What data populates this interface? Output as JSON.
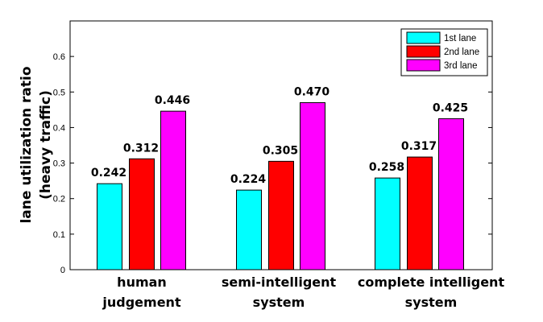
{
  "chart_data": {
    "type": "bar",
    "categories": [
      [
        "human",
        "judgement"
      ],
      [
        "semi-intelligent",
        "system"
      ],
      [
        "complete intelligent",
        "system"
      ]
    ],
    "series": [
      {
        "name": "1st lane",
        "color": "#00ffff",
        "values": [
          0.242,
          0.224,
          0.258
        ],
        "labels": [
          "0.242",
          "0.224",
          "0.258"
        ]
      },
      {
        "name": "2nd lane",
        "color": "#ff0000",
        "values": [
          0.312,
          0.305,
          0.317
        ],
        "labels": [
          "0.312",
          "0.305",
          "0.317"
        ]
      },
      {
        "name": "3rd lane",
        "color": "#ff00ff",
        "values": [
          0.446,
          0.47,
          0.425
        ],
        "labels": [
          "0.446",
          "0.470",
          "0.425"
        ]
      }
    ],
    "ylabel": [
      "lane utilization ratio",
      "(heavy traffic)"
    ],
    "ylim": [
      0,
      0.7
    ],
    "yticks": [
      "0",
      "0.1",
      "0.2",
      "0.3",
      "0.4",
      "0.5",
      "0.6"
    ],
    "legend_position": "top-right",
    "grid": false
  }
}
